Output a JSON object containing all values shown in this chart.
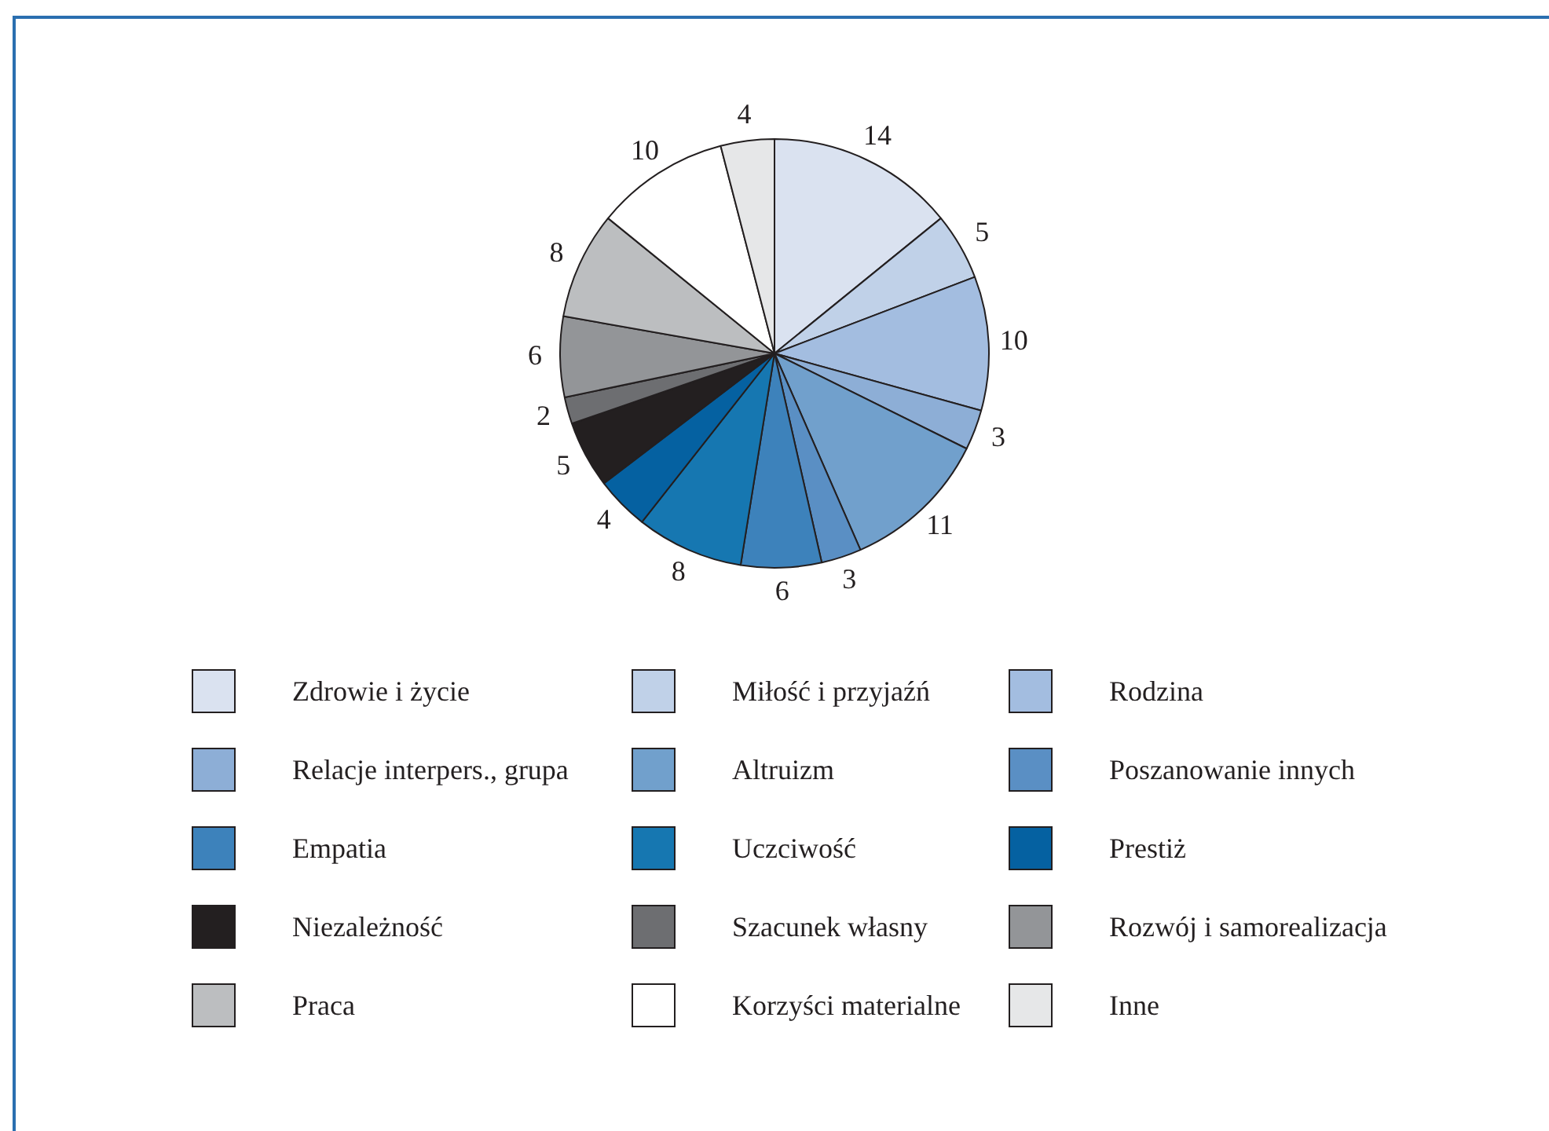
{
  "chart_data": {
    "type": "pie",
    "categories": [
      "Zdrowie i życie",
      "Miłość i przyjaźń",
      "Rodzina",
      "Relacje interpers., grupa",
      "Altruizm",
      "Poszanowanie innych",
      "Empatia",
      "Uczciwość",
      "Prestiż",
      "Niezależność",
      "Szacunek własny",
      "Rozwój i samorealizacja",
      "Praca",
      "Korzyści materialne",
      "Inne"
    ],
    "values": [
      14,
      5,
      10,
      3,
      11,
      3,
      6,
      8,
      4,
      5,
      2,
      6,
      8,
      10,
      4
    ],
    "colors": [
      "#dae2f0",
      "#c0d1e8",
      "#a3bde0",
      "#8daed6",
      "#71a0cc",
      "#5a8fc4",
      "#3d82bb",
      "#1677b1",
      "#0561a1",
      "#231f20",
      "#6d6e71",
      "#939598",
      "#bcbec0",
      "#ffffff",
      "#e6e7e8"
    ],
    "data_labels": true,
    "legend": "bottom"
  }
}
